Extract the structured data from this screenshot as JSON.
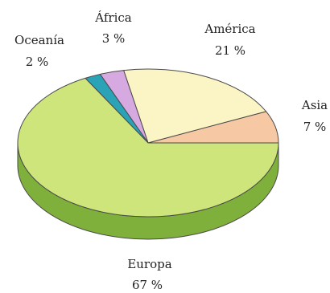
{
  "chart_data": {
    "type": "pie",
    "style": "3d",
    "slices": [
      {
        "label": "Asia",
        "value": 7,
        "value_label": "7 %",
        "color": "#f6c9a4",
        "side_color": "#d9a57e"
      },
      {
        "label": "América",
        "value": 21,
        "value_label": "21 %",
        "color": "#fbf5c6",
        "side_color": "#ddd7a4"
      },
      {
        "label": "África",
        "value": 3,
        "value_label": "3 %",
        "color": "#d6a9e0",
        "side_color": "#b385bf"
      },
      {
        "label": "Oceanía",
        "value": 2,
        "value_label": "2 %",
        "color": "#2ba3b7",
        "side_color": "#1f7e8f"
      },
      {
        "label": "Europa",
        "value": 67,
        "value_label": "67 %",
        "color": "#cde57b",
        "side_color": "#7fb03c"
      }
    ]
  }
}
